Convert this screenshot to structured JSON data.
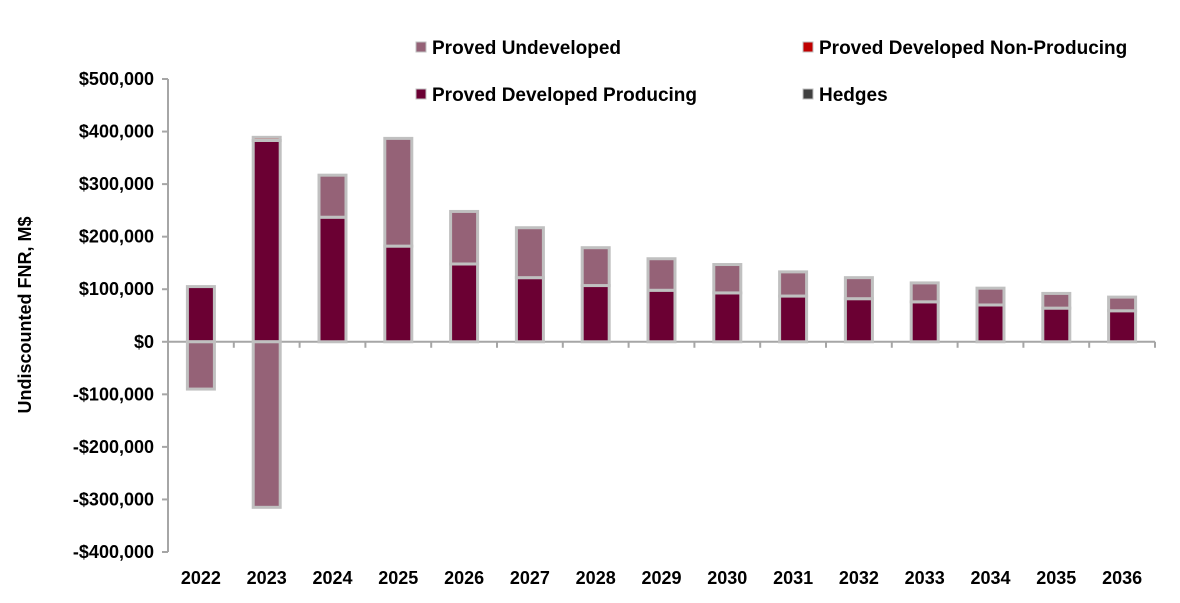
{
  "chart_data": {
    "type": "bar",
    "stacked": true,
    "ylabel": "Undiscounted FNR, M$",
    "xlabel": "",
    "ylim": [
      -400000,
      500000
    ],
    "yticks": [
      500000,
      400000,
      300000,
      200000,
      100000,
      0,
      -100000,
      -200000,
      -300000,
      -400000
    ],
    "ytick_labels": [
      "$500,000",
      "$400,000",
      "$300,000",
      "$200,000",
      "$100,000",
      "$0",
      "-$100,000",
      "-$200,000",
      "-$300,000",
      "-$400,000"
    ],
    "categories": [
      "2022",
      "2023",
      "2024",
      "2025",
      "2026",
      "2027",
      "2028",
      "2029",
      "2030",
      "2031",
      "2032",
      "2033",
      "2034",
      "2035",
      "2036"
    ],
    "legend": {
      "position": "top-right"
    },
    "series": [
      {
        "name": "Proved Developed Producing",
        "color": "#6b0033",
        "values": [
          105000,
          383000,
          237000,
          182000,
          148000,
          122000,
          107000,
          98000,
          93000,
          87000,
          82000,
          76000,
          70000,
          64000,
          59000
        ]
      },
      {
        "name": "Proved Developed Non-Producing",
        "color": "#c00000",
        "values": [
          0,
          6000,
          0,
          0,
          0,
          0,
          0,
          0,
          0,
          0,
          0,
          0,
          0,
          0,
          0
        ]
      },
      {
        "name": "Proved Undeveloped",
        "color": "#956277",
        "values": [
          -90000,
          -315000,
          80000,
          205000,
          100000,
          95000,
          72000,
          60000,
          54000,
          46000,
          40000,
          36000,
          32000,
          28000,
          26000
        ]
      },
      {
        "name": "Hedges",
        "color": "#404040",
        "values": [
          0,
          0,
          0,
          0,
          0,
          0,
          0,
          0,
          0,
          0,
          0,
          0,
          0,
          0,
          0
        ]
      }
    ],
    "legend_order": [
      "Proved Undeveloped",
      "Proved Developed Non-Producing",
      "Proved Developed Producing",
      "Hedges"
    ]
  }
}
